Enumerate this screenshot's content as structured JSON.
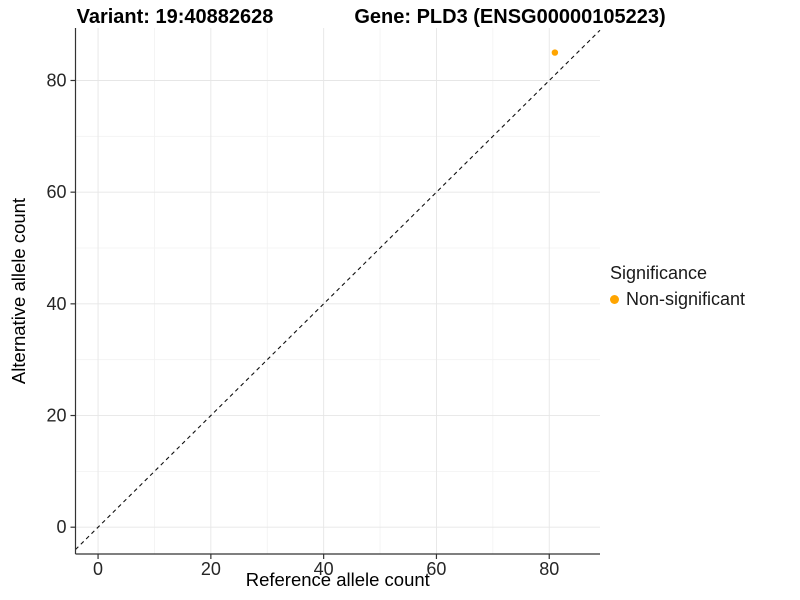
{
  "title": {
    "variant": "Variant: 19:40882628",
    "gene": "Gene: PLD3 (ENSG00000105223)"
  },
  "chart_data": {
    "type": "scatter",
    "title_left": "Variant: 19:40882628",
    "title_right": "Gene: PLD3 (ENSG00000105223)",
    "xlabel": "Reference allele count",
    "ylabel": "Alternative allele count",
    "xlim": [
      -4,
      89
    ],
    "ylim": [
      -4.8,
      89.4
    ],
    "xticks": [
      0,
      20,
      40,
      60,
      80
    ],
    "yticks": [
      0,
      20,
      40,
      60,
      80
    ],
    "xticks_minor": [
      10,
      30,
      50,
      70
    ],
    "yticks_minor": [
      10,
      30,
      50,
      70
    ],
    "grid": true,
    "series": [
      {
        "name": "Non-significant",
        "color": "#FFA500",
        "points": [
          {
            "x": 81,
            "y": 85
          }
        ]
      }
    ],
    "identity_line": {
      "style": "dashed",
      "equation": "y = x",
      "color": "#111111"
    },
    "legend": {
      "title": "Significance",
      "position": "right",
      "items": [
        {
          "label": "Non-significant",
          "color": "#FFA500"
        }
      ]
    }
  },
  "colors": {
    "background": "#FFFFFF",
    "axis_line": "#333333",
    "tick_mark": "#333333",
    "tick_label": "#262626",
    "axis_title": "#000000",
    "grid_major": "#E6E6E6",
    "grid_minor": "#F2F2F2"
  }
}
